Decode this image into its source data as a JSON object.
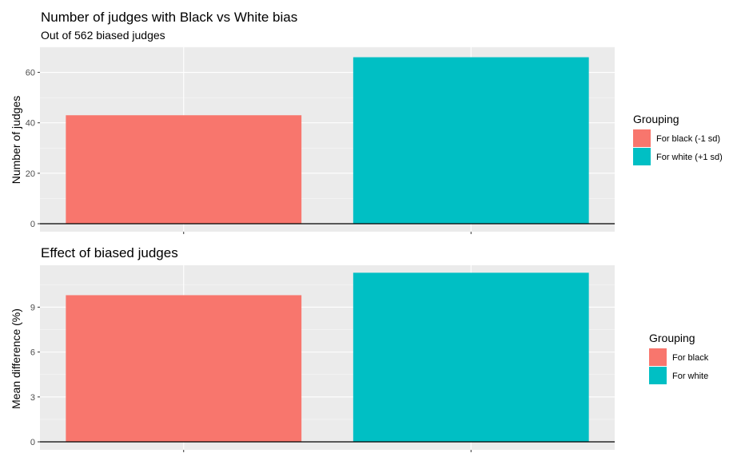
{
  "chart_data": [
    {
      "type": "bar",
      "title": "Number of judges with Black vs White bias",
      "subtitle": "Out of 562 biased judges",
      "xlabel": "",
      "ylabel": "Number of judges",
      "categories": [
        "For black (-1 sd)",
        "For white (+1 sd)"
      ],
      "values": [
        43,
        66
      ],
      "colors": [
        "#F8766D",
        "#00BFC4"
      ],
      "ylim": [
        0,
        70
      ],
      "yticks": [
        0,
        20,
        40,
        60
      ],
      "grid": true,
      "legend": {
        "title": "Grouping",
        "position": "right",
        "entries": [
          "For black (-1 sd)",
          "For white (+1 sd)"
        ]
      }
    },
    {
      "type": "bar",
      "title": "Effect of biased judges",
      "xlabel": "",
      "ylabel": "Mean difference (%)",
      "categories": [
        "For black",
        "For white"
      ],
      "values": [
        9.8,
        11.3
      ],
      "colors": [
        "#F8766D",
        "#00BFC4"
      ],
      "ylim": [
        0,
        11.8
      ],
      "yticks": [
        0,
        3,
        6,
        9
      ],
      "grid": true,
      "legend": {
        "title": "Grouping",
        "position": "right",
        "entries": [
          "For black",
          "For white"
        ]
      }
    }
  ]
}
